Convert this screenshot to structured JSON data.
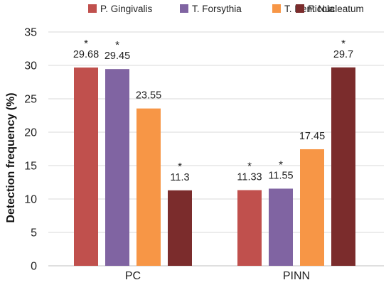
{
  "chart_data": {
    "type": "bar",
    "categories": [
      "PC",
      "PINN"
    ],
    "series": [
      {
        "name": "P. Gingivalis",
        "values": [
          29.68,
          11.33
        ],
        "labels": [
          "29.68",
          "11.33"
        ],
        "significant": [
          true,
          true
        ],
        "color": "#c0504d"
      },
      {
        "name": "T. Forsythia",
        "values": [
          29.45,
          11.55
        ],
        "labels": [
          "29.45",
          "11.55"
        ],
        "significant": [
          true,
          true
        ],
        "color": "#8064a2"
      },
      {
        "name": "T. Denticola",
        "values": [
          23.55,
          17.45
        ],
        "labels": [
          "23.55",
          "17.45"
        ],
        "significant": [
          false,
          false
        ],
        "color": "#f79646"
      },
      {
        "name": "F. Nucleatum",
        "values": [
          11.3,
          29.7
        ],
        "labels": [
          "11.3",
          "29.7"
        ],
        "significant": [
          true,
          true
        ],
        "color": "#7b2c2c"
      }
    ],
    "ylabel": "Detection frequency (%)",
    "xlabel": "",
    "ylim": [
      0,
      35
    ],
    "yticks": [
      "0",
      "5",
      "10",
      "15",
      "20",
      "25",
      "30",
      "35"
    ],
    "significance_marker": "*",
    "grid": true,
    "legend_position": "top"
  }
}
